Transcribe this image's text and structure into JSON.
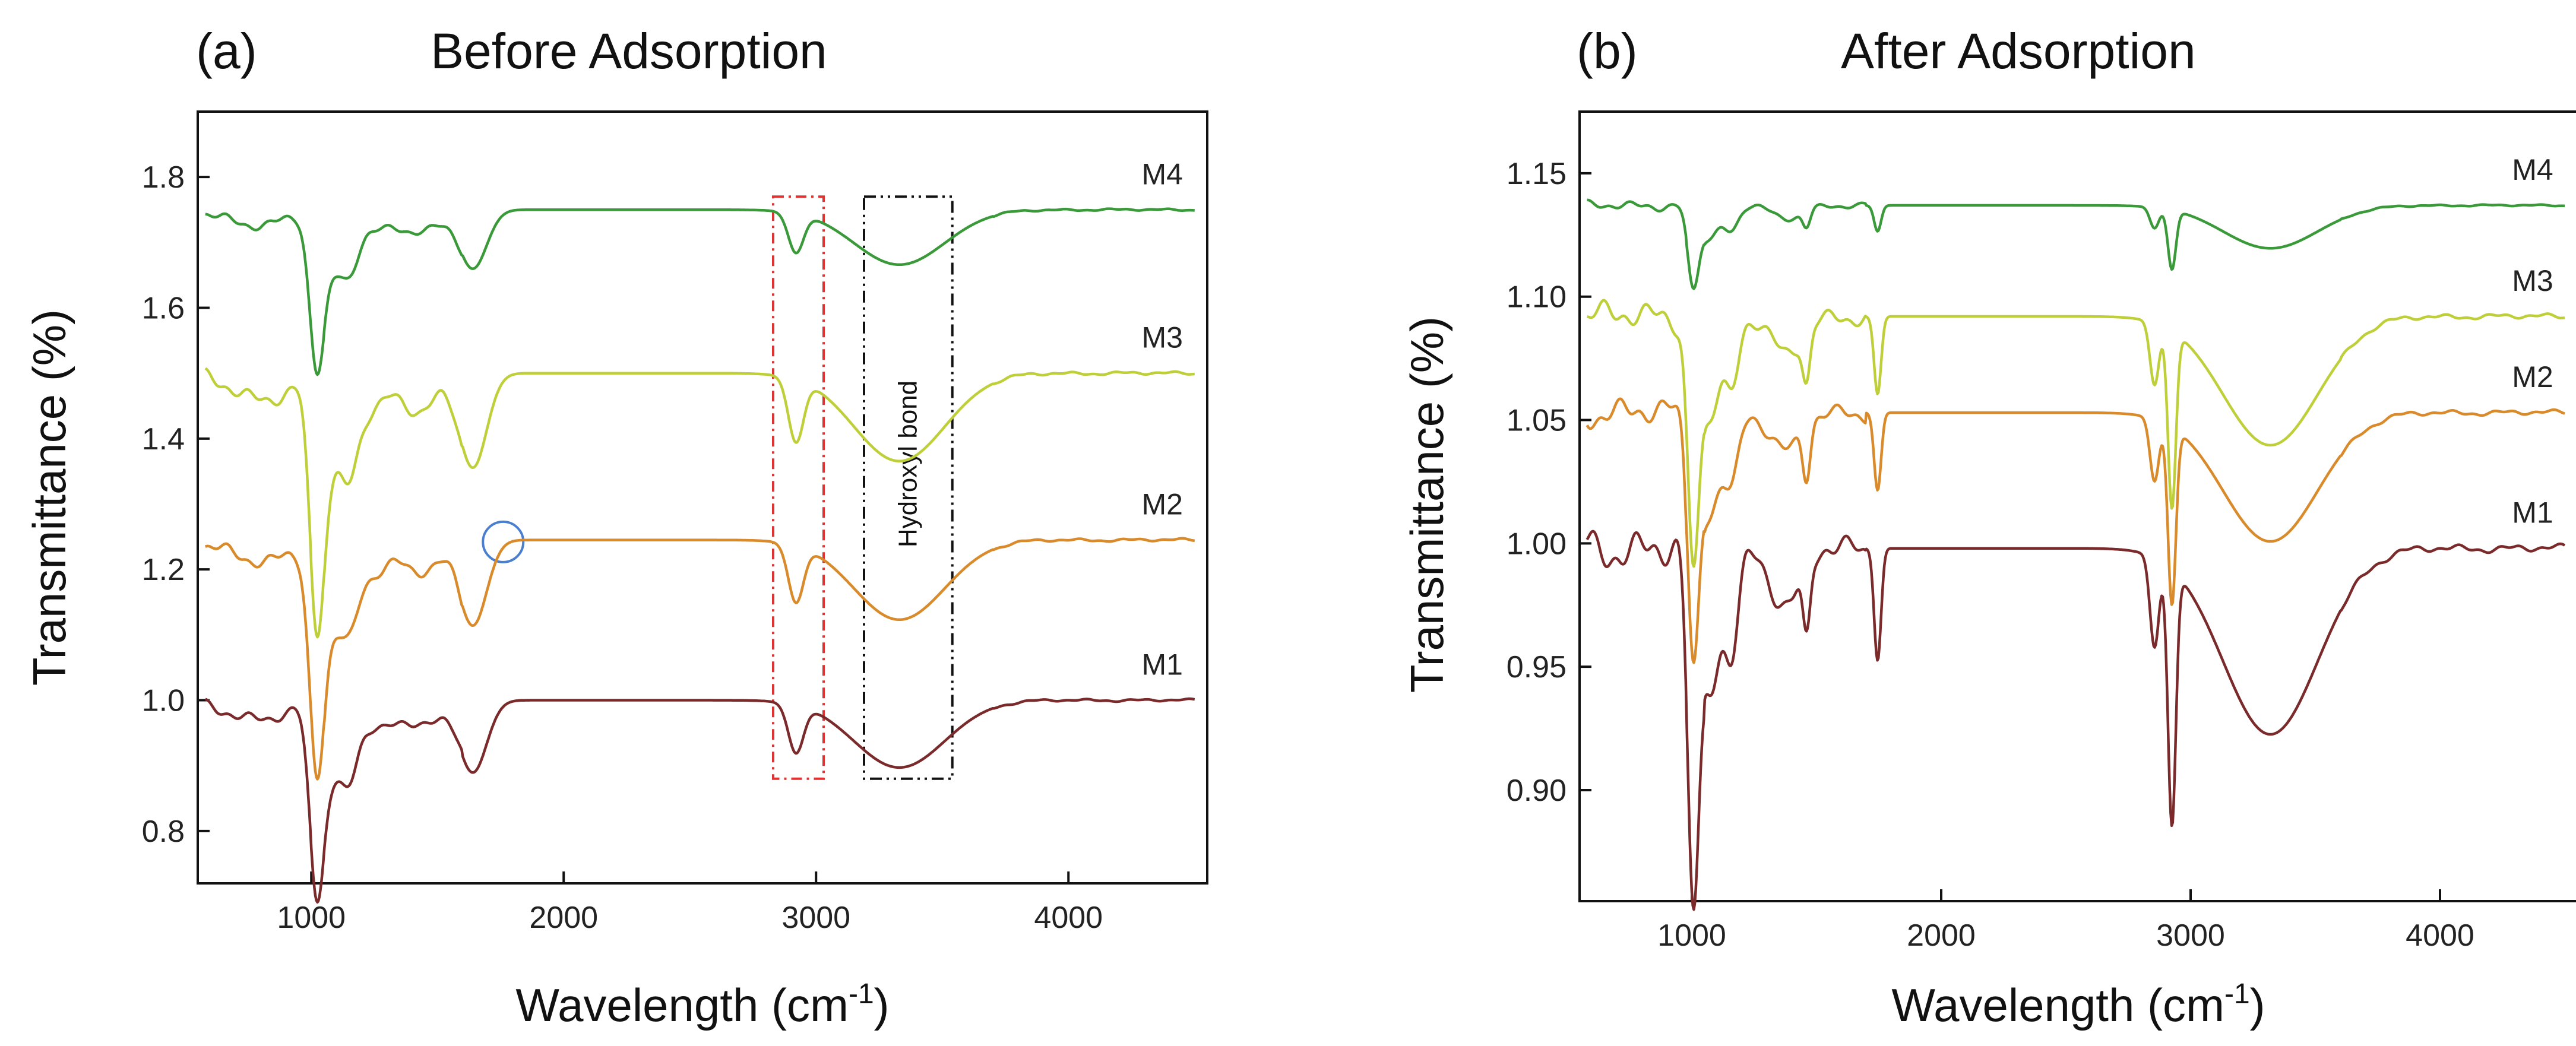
{
  "chart_data": [
    {
      "type": "line",
      "panel_label": "(a)",
      "title": "Before Adsorption",
      "xlabel": "Wavelength (cm",
      "xlabel_sup": "-1",
      "xlabel_close": ")",
      "ylabel": "Transmittance (%)",
      "xlim": [
        550,
        4550
      ],
      "ylim": [
        0.72,
        1.9
      ],
      "xticks": [
        1000,
        2000,
        3000,
        4000
      ],
      "xtick_labels": [
        "1000",
        "2000",
        "3000",
        "4000"
      ],
      "yticks": [
        0.8,
        1.0,
        1.2,
        1.4,
        1.6,
        1.8
      ],
      "ytick_labels": [
        "0.8",
        "1.0",
        "1.2",
        "1.4",
        "1.6",
        "1.8"
      ],
      "series": [
        {
          "name": "M1",
          "color": "#7a2a2a",
          "baseline": 1.0,
          "drop": [
            [
              "500",
              "0"
            ]
          ]
        },
        {
          "name": "M2",
          "color": "#d98a2a",
          "baseline": 1.245
        },
        {
          "name": "M3",
          "color": "#bfcf3a",
          "baseline": 1.5
        },
        {
          "name": "M4",
          "color": "#3a9a3a",
          "baseline": 1.75
        }
      ],
      "annotations": [
        {
          "kind": "red-dashed-box",
          "x_range": [
            2830,
            3030
          ],
          "y_range": [
            0.88,
            1.77
          ],
          "color": "#dd3333"
        },
        {
          "kind": "black-dashdot-box",
          "x_range": [
            3190,
            3540
          ],
          "y_range": [
            0.88,
            1.77
          ],
          "color": "#111111",
          "text": "Hydroxyl bond"
        },
        {
          "kind": "blue-circle",
          "x": 1760,
          "y": 1.242,
          "color": "#4a7fd0"
        }
      ]
    },
    {
      "type": "line",
      "panel_label": "(b)",
      "title": "After Adsorption",
      "xlabel": "Wavelength (cm",
      "xlabel_sup": "-1",
      "xlabel_close": ")",
      "ylabel": "Transmittance (%)",
      "xlim": [
        550,
        4550
      ],
      "ylim": [
        0.855,
        1.175
      ],
      "xticks": [
        1000,
        2000,
        3000,
        4000
      ],
      "xtick_labels": [
        "1000",
        "2000",
        "3000",
        "4000"
      ],
      "yticks": [
        0.9,
        0.95,
        1.0,
        1.05,
        1.1,
        1.15
      ],
      "ytick_labels": [
        "0.90",
        "0.95",
        "1.00",
        "1.05",
        "1.10",
        "1.15"
      ],
      "series": [
        {
          "name": "M1",
          "color": "#7a2a2a",
          "baseline": 0.998
        },
        {
          "name": "M2",
          "color": "#d98a2a",
          "baseline": 1.053
        },
        {
          "name": "M3",
          "color": "#bfcf3a",
          "baseline": 1.092
        },
        {
          "name": "M4",
          "color": "#3a9a3a",
          "baseline": 1.137
        }
      ]
    }
  ]
}
